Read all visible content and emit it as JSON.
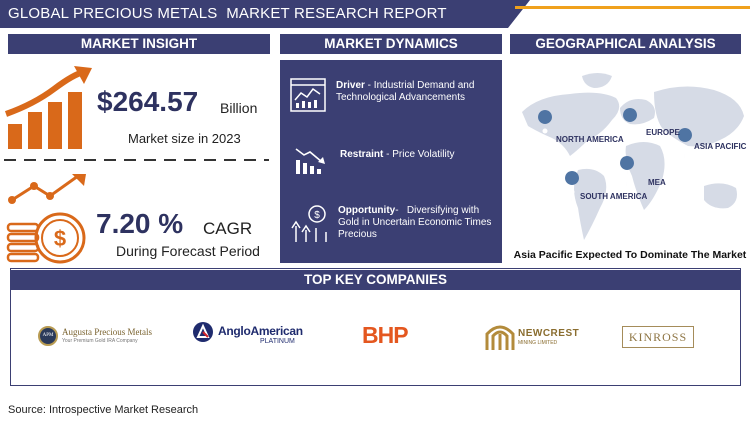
{
  "header": {
    "title": "GLOBAL PRECIOUS METALS  MARKET RESEARCH REPORT"
  },
  "colors": {
    "navy": "#3b3f73",
    "orange": "#d9691a",
    "gold": "#f0a11c"
  },
  "insight": {
    "heading": "MARKET INSIGHT",
    "market_size": "$264.57",
    "market_size_unit": "Billion",
    "market_size_label": "Market size in 2023",
    "cagr": "7.20 %",
    "cagr_label": "CAGR",
    "cagr_period": "During Forecast Period",
    "icons": [
      "growth-bar-chart-icon",
      "dollar-coins-icon"
    ]
  },
  "dynamics": {
    "heading": "MARKET DYNAMICS",
    "items": [
      {
        "label": "Driver",
        "text": "Industrial Demand and Technological Advancements",
        "icon": "dashboard-chart-icon"
      },
      {
        "label": "Restraint",
        "text": "Price Volatility",
        "icon": "decline-chart-icon"
      },
      {
        "label": "Opportunity",
        "text": "Diversifying with Gold in Uncertain Economic Times Precious",
        "icon": "growth-money-icon"
      }
    ]
  },
  "geography": {
    "heading": "GEOGRAPHICAL ANALYSIS",
    "regions": [
      "NORTH AMERICA",
      "EUROPE",
      "ASIA PACIFIC",
      "SOUTH AMERICA",
      "MEA"
    ],
    "caption": "Asia Pacific Expected To Dominate The Market"
  },
  "companies": {
    "heading": "TOP KEY COMPANIES",
    "list": [
      {
        "name": "Augusta Precious Metals",
        "tagline": "Your Premium Gold IRA Company",
        "initials": "APM"
      },
      {
        "name": "AngloAmerican",
        "sub": "PLATINUM"
      },
      {
        "name": "BHP"
      },
      {
        "name": "NEWCREST",
        "sub": "MINING LIMITED"
      },
      {
        "name": "KINROSS"
      }
    ]
  },
  "footer": {
    "source": "Source: Introspective Market Research"
  }
}
